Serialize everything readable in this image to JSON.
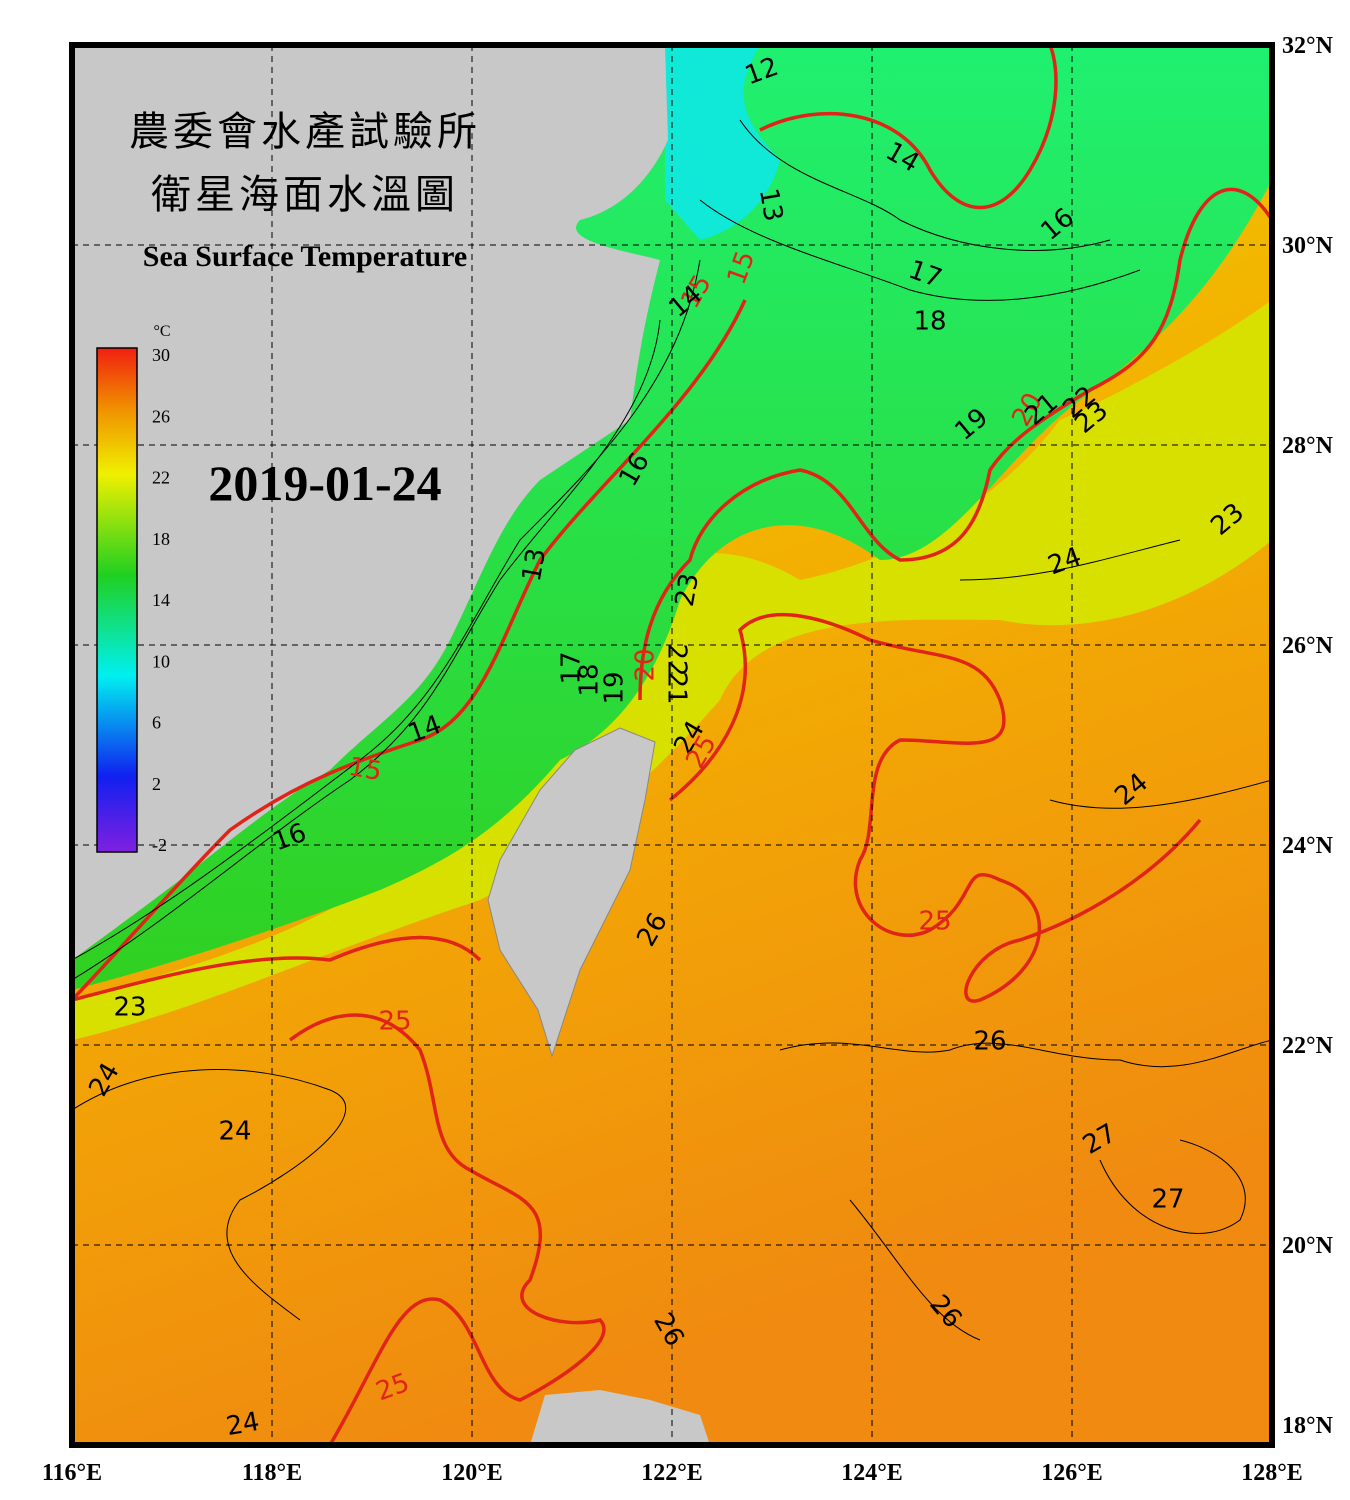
{
  "header": {
    "title_zh_1": "農委會水產試驗所",
    "title_zh_2": "衛星海面水溫圖",
    "title_en": "Sea Surface Temperature",
    "date": "2019-01-24"
  },
  "colorbar": {
    "unit": "°C",
    "ticks": [
      30,
      26,
      22,
      18,
      14,
      10,
      6,
      2,
      -2
    ]
  },
  "axes": {
    "latitude_labels": [
      "32°N",
      "30°N",
      "28°N",
      "26°N",
      "24°N",
      "22°N",
      "20°N",
      "18°N"
    ],
    "longitude_labels": [
      "116°E",
      "118°E",
      "120°E",
      "122°E",
      "124°E",
      "126°E",
      "128°E"
    ]
  },
  "contour_labels": [
    "12",
    "14",
    "13",
    "16",
    "17",
    "18",
    "15",
    "15",
    "14",
    "19",
    "20",
    "21",
    "22",
    "23",
    "16",
    "23",
    "24",
    "13",
    "23",
    "17",
    "18",
    "19",
    "20",
    "22",
    "21",
    "24",
    "25",
    "14",
    "15",
    "24",
    "16",
    "26",
    "25",
    "23",
    "25",
    "26",
    "24",
    "24",
    "27",
    "27",
    "26",
    "26",
    "25",
    "24"
  ]
}
